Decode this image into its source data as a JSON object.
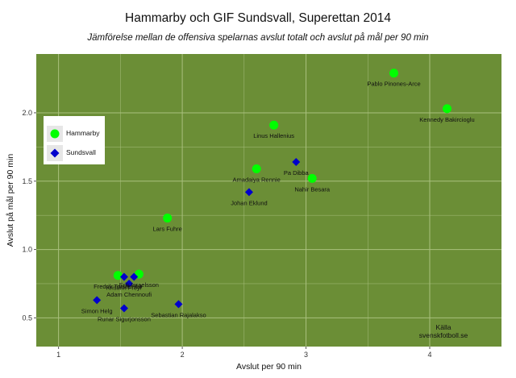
{
  "colors": {
    "panel": "#6b8e36",
    "grid": "#a9c07e",
    "hammarby": "#00ff00",
    "sundsvall": "#0000cc"
  },
  "source_note": [
    "Källa",
    "svenskfotboll.se"
  ],
  "chart_data": {
    "type": "scatter",
    "title": "Hammarby och GIF Sundsvall, Superettan 2014",
    "subtitle": "Jämförelse mellan de offensiva spelarnas avslut totalt och avslut på mål per 90 min",
    "xlabel": "Avslut per 90 min",
    "ylabel": "Avslut på mål per 90 min",
    "xlim": [
      0.82,
      4.58
    ],
    "ylim": [
      0.29,
      2.43
    ],
    "xticks": [
      1,
      2,
      3,
      4
    ],
    "yticks": [
      0.5,
      1.0,
      1.5,
      2.0
    ],
    "ytick_labels": [
      "0.5",
      "1.0",
      "1.5",
      "2.0"
    ],
    "grid": true,
    "legend_position": "top-left",
    "series": [
      {
        "name": "Hammarby",
        "marker": "circle",
        "points": [
          {
            "x": 3.71,
            "y": 2.29,
            "label": "Pablo Pinones-Arce"
          },
          {
            "x": 4.14,
            "y": 2.03,
            "label": "Kennedy Bakircioglu"
          },
          {
            "x": 2.74,
            "y": 1.91,
            "label": "Linus Hallenius"
          },
          {
            "x": 2.6,
            "y": 1.59,
            "label": "Amadaiya Rennie"
          },
          {
            "x": 3.05,
            "y": 1.52,
            "label": "Nahir Besara"
          },
          {
            "x": 1.88,
            "y": 1.23,
            "label": "Lars Fuhre"
          },
          {
            "x": 1.48,
            "y": 0.81,
            "label": "Fredrik Torsteinbø"
          },
          {
            "x": 1.65,
            "y": 0.82,
            "label": "Erik Israelsson"
          }
        ]
      },
      {
        "name": "Sundsvall",
        "marker": "diamond",
        "points": [
          {
            "x": 2.92,
            "y": 1.64,
            "label": "Pa Dibba"
          },
          {
            "x": 2.54,
            "y": 1.42,
            "label": "Johan Eklund"
          },
          {
            "x": 1.53,
            "y": 0.8,
            "label": "Kristinn Freyr"
          },
          {
            "x": 1.61,
            "y": 0.8,
            "label": ""
          },
          {
            "x": 1.57,
            "y": 0.75,
            "label": "Adam Chennoufi"
          },
          {
            "x": 1.31,
            "y": 0.63,
            "label": "Simon Helg"
          },
          {
            "x": 1.53,
            "y": 0.57,
            "label": "Runar Sigurjonsson"
          },
          {
            "x": 1.97,
            "y": 0.6,
            "label": "Sebastian Rajalakso"
          }
        ]
      }
    ]
  }
}
